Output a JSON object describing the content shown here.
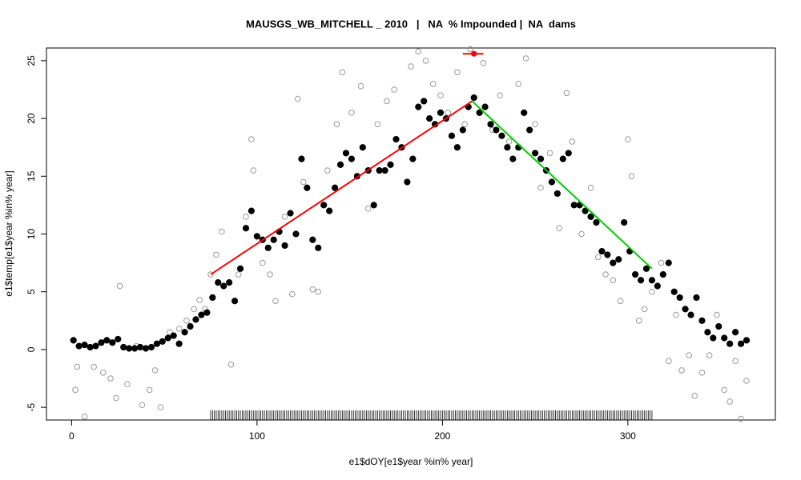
{
  "chart_data": {
    "type": "scatter",
    "title": "MAUSGS_WB_MITCHELL _ 2010   |   NA  % Impounded |  NA  dams",
    "x_label": "e1$dOY[e1$year %in% year]",
    "y_label": "e1$temp[e1$year %in% year]",
    "xlim": [
      -13.56,
      379.56
    ],
    "ylim": [
      -6.1,
      26.1
    ],
    "xticks": [
      0,
      100,
      200,
      300
    ],
    "yticks": [
      -5,
      0,
      5,
      10,
      15,
      20,
      25
    ],
    "series": [
      {
        "name": "all",
        "color": "#999999",
        "filled": false,
        "x": [
          2,
          3,
          7,
          12,
          17,
          21,
          24,
          26,
          30,
          35,
          38,
          42,
          45,
          48,
          53,
          58,
          62,
          66,
          69,
          72,
          75,
          78,
          81,
          86,
          90,
          94,
          97,
          98,
          103,
          107,
          110,
          115,
          119,
          122,
          125,
          130,
          133,
          138,
          143,
          146,
          151,
          156,
          160,
          165,
          170,
          174,
          178,
          183,
          187,
          191,
          195,
          199,
          203,
          208,
          212,
          215,
          222,
          227,
          231,
          236,
          241,
          245,
          250,
          253,
          258,
          263,
          267,
          270,
          275,
          280,
          284,
          288,
          292,
          296,
          300,
          302,
          306,
          309,
          313,
          318,
          322,
          326,
          329,
          333,
          336,
          340,
          344,
          348,
          352,
          355,
          358,
          361,
          364
        ],
        "values": [
          -3.5,
          -1.5,
          -5.8,
          -1.5,
          -2,
          -2.5,
          -4.2,
          5.5,
          -3,
          0.3,
          -4.8,
          -3.5,
          -1.8,
          -5,
          1.5,
          1.8,
          2.5,
          3.5,
          4.3,
          3.5,
          6.5,
          8.2,
          10.2,
          -1.3,
          6.5,
          11.5,
          18.2,
          15.5,
          7.5,
          6.5,
          4.2,
          11.5,
          4.8,
          21.7,
          14.5,
          5.2,
          5.0,
          15.5,
          19.5,
          24,
          20.5,
          22.8,
          12.2,
          19.5,
          21.5,
          22.5,
          17.5,
          24.5,
          25.8,
          25,
          23,
          22,
          20.5,
          24,
          19.5,
          26,
          24.8,
          19,
          22,
          18,
          23,
          25.2,
          19.5,
          14,
          17,
          10.5,
          22.2,
          18,
          10.0,
          14,
          8,
          6.5,
          6,
          4.2,
          18.2,
          15,
          2.5,
          3.5,
          5,
          7.5,
          -1,
          3,
          -1.8,
          -0.5,
          -4,
          -2,
          -0.5,
          3,
          -3.5,
          -4.5,
          -1,
          -6,
          -2.7
        ]
      },
      {
        "name": "year",
        "color": "#000000",
        "filled": true,
        "x": [
          1,
          4,
          7,
          10,
          13,
          16,
          19,
          22,
          25,
          28,
          31,
          34,
          37,
          40,
          43,
          46,
          49,
          52,
          55,
          58,
          61,
          64,
          67,
          70,
          73,
          76,
          79,
          82,
          85,
          88,
          91,
          94,
          97,
          100,
          103,
          106,
          109,
          112,
          115,
          118,
          121,
          124,
          127,
          130,
          133,
          136,
          139,
          142,
          145,
          148,
          151,
          154,
          157,
          160,
          163,
          166,
          169,
          172,
          175,
          178,
          181,
          184,
          187,
          190,
          193,
          196,
          199,
          202,
          205,
          208,
          211,
          214,
          217,
          220,
          223,
          226,
          229,
          232,
          235,
          238,
          241,
          244,
          247,
          250,
          253,
          256,
          259,
          262,
          265,
          268,
          271,
          274,
          277,
          280,
          283,
          286,
          289,
          292,
          295,
          298,
          301,
          304,
          307,
          310,
          313,
          316,
          319,
          322,
          325,
          328,
          331,
          334,
          337,
          340,
          343,
          346,
          349,
          352,
          355,
          358,
          361,
          364
        ],
        "values": [
          0.8,
          0.3,
          0.4,
          0.2,
          0.3,
          0.6,
          0.8,
          0.6,
          0.9,
          0.2,
          0.1,
          0.1,
          0.2,
          0.1,
          0.2,
          0.5,
          0.7,
          1.0,
          1.2,
          0.5,
          1.5,
          2.0,
          2.6,
          3.0,
          3.2,
          4.5,
          5.8,
          5.5,
          5.8,
          4.2,
          7.0,
          10.5,
          12.0,
          9.8,
          9.5,
          8.8,
          9.5,
          10.2,
          9.0,
          11.8,
          10.0,
          16.5,
          14.0,
          9.5,
          8.8,
          12.5,
          12.0,
          14.0,
          16.0,
          17.0,
          16.5,
          15.0,
          17.5,
          15.5,
          12.5,
          15.5,
          15.5,
          16.0,
          18.2,
          17.5,
          14.5,
          16.5,
          21.0,
          21.5,
          20.0,
          19.5,
          20.5,
          20.0,
          18.5,
          17.5,
          19.0,
          21.0,
          21.8,
          20.5,
          21.0,
          19.5,
          19.0,
          18.5,
          17.5,
          16.5,
          17.5,
          20.5,
          19.0,
          17.0,
          16.5,
          15.5,
          14.5,
          13.5,
          16.5,
          17.0,
          12.5,
          12.5,
          12.0,
          11.5,
          11.0,
          8.5,
          8.2,
          7.5,
          7.8,
          11.0,
          8.5,
          6.5,
          6.0,
          7.0,
          6.0,
          5.5,
          6.5,
          7.5,
          5.0,
          4.5,
          3.5,
          3.0,
          4.5,
          2.5,
          1.5,
          1.0,
          2.0,
          1.0,
          0.5,
          1.5,
          0.5,
          0.8
        ]
      }
    ],
    "fits": [
      {
        "color": "#ff0000",
        "x": [
          75,
          216
        ],
        "y": [
          6.5,
          21.5
        ]
      },
      {
        "color": "#00cc00",
        "x": [
          216,
          313
        ],
        "y": [
          21.5,
          7.0
        ]
      }
    ],
    "summary_point": {
      "color": "#ff0000",
      "x": 217,
      "y": 25.6,
      "xerr": [
        211,
        222
      ]
    },
    "rug_range": [
      75,
      313
    ]
  }
}
